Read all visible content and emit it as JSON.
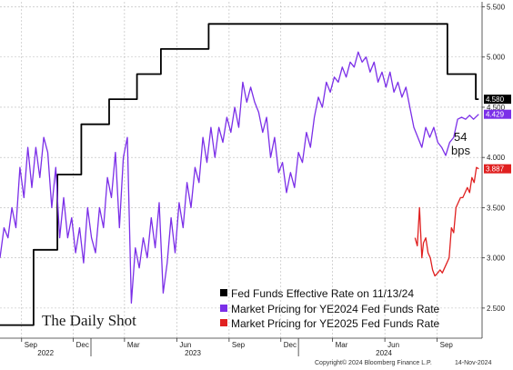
{
  "chart_data": {
    "type": "line",
    "xlabel": "",
    "ylabel": "",
    "ylim": [
      2.2,
      5.55
    ],
    "y_ticks": [
      "2.500",
      "3.000",
      "3.500",
      "4.000",
      "4.500",
      "5.000",
      "5.500"
    ],
    "x_ticks": [
      "Sep",
      "Dec",
      "Mar",
      "Jun",
      "Sep",
      "Dec",
      "Mar",
      "Jun",
      "Sep"
    ],
    "x_tick_dates": [
      "2022-09-01",
      "2022-12-01",
      "2023-03-01",
      "2023-06-01",
      "2023-09-01",
      "2023-12-01",
      "2024-03-01",
      "2024-06-01",
      "2024-09-01"
    ],
    "year_labels": [
      {
        "label": "2022",
        "date": "2022-10-15"
      },
      {
        "label": "2023",
        "date": "2023-07-01"
      },
      {
        "label": "2024",
        "date": "2024-06-01"
      }
    ],
    "grid": true,
    "legend_position": "bottom-right",
    "series": [
      {
        "name": "Fed Funds Effective Rate on 11/13/24",
        "color": "#000000",
        "last_value": "4.580",
        "points": [
          [
            "2022-07-25",
            2.33
          ],
          [
            "2022-08-01",
            2.33
          ],
          [
            "2022-09-22",
            2.33
          ],
          [
            "2022-09-22",
            3.08
          ],
          [
            "2022-11-03",
            3.08
          ],
          [
            "2022-11-03",
            3.83
          ],
          [
            "2022-12-15",
            3.83
          ],
          [
            "2022-12-15",
            4.33
          ],
          [
            "2023-02-02",
            4.33
          ],
          [
            "2023-02-02",
            4.58
          ],
          [
            "2023-03-23",
            4.58
          ],
          [
            "2023-03-23",
            4.83
          ],
          [
            "2023-05-04",
            4.83
          ],
          [
            "2023-05-04",
            5.08
          ],
          [
            "2023-07-27",
            5.08
          ],
          [
            "2023-07-27",
            5.33
          ],
          [
            "2024-09-19",
            5.33
          ],
          [
            "2024-09-19",
            4.83
          ],
          [
            "2024-11-08",
            4.83
          ],
          [
            "2024-11-08",
            4.58
          ],
          [
            "2024-11-13",
            4.58
          ]
        ]
      },
      {
        "name": "Market Pricing for YE2024 Fed Funds Rate",
        "color": "#7b2fe8",
        "last_value": "4.429",
        "points": [
          [
            "2022-07-25",
            3.0
          ],
          [
            "2022-08-01",
            3.3
          ],
          [
            "2022-08-08",
            3.2
          ],
          [
            "2022-08-15",
            3.5
          ],
          [
            "2022-08-22",
            3.3
          ],
          [
            "2022-08-29",
            3.9
          ],
          [
            "2022-09-05",
            3.6
          ],
          [
            "2022-09-12",
            4.1
          ],
          [
            "2022-09-19",
            3.7
          ],
          [
            "2022-09-26",
            4.1
          ],
          [
            "2022-10-03",
            3.8
          ],
          [
            "2022-10-10",
            4.2
          ],
          [
            "2022-10-17",
            4.05
          ],
          [
            "2022-10-24",
            3.5
          ],
          [
            "2022-10-31",
            3.9
          ],
          [
            "2022-11-07",
            3.2
          ],
          [
            "2022-11-14",
            3.6
          ],
          [
            "2022-11-21",
            3.2
          ],
          [
            "2022-11-28",
            3.4
          ],
          [
            "2022-12-05",
            3.05
          ],
          [
            "2022-12-12",
            3.3
          ],
          [
            "2022-12-19",
            2.95
          ],
          [
            "2022-12-26",
            3.5
          ],
          [
            "2023-01-02",
            3.2
          ],
          [
            "2023-01-09",
            3.05
          ],
          [
            "2023-01-16",
            3.5
          ],
          [
            "2023-01-23",
            3.3
          ],
          [
            "2023-01-30",
            3.8
          ],
          [
            "2023-02-06",
            3.6
          ],
          [
            "2023-02-13",
            4.05
          ],
          [
            "2023-02-20",
            3.3
          ],
          [
            "2023-02-27",
            4.0
          ],
          [
            "2023-03-06",
            4.2
          ],
          [
            "2023-03-13",
            2.55
          ],
          [
            "2023-03-20",
            3.1
          ],
          [
            "2023-03-27",
            2.9
          ],
          [
            "2023-04-03",
            3.2
          ],
          [
            "2023-04-10",
            3.0
          ],
          [
            "2023-04-17",
            3.4
          ],
          [
            "2023-04-24",
            3.1
          ],
          [
            "2023-05-01",
            3.55
          ],
          [
            "2023-05-08",
            2.65
          ],
          [
            "2023-05-15",
            2.95
          ],
          [
            "2023-05-22",
            3.4
          ],
          [
            "2023-05-29",
            3.05
          ],
          [
            "2023-06-05",
            3.55
          ],
          [
            "2023-06-12",
            3.3
          ],
          [
            "2023-06-19",
            3.75
          ],
          [
            "2023-06-26",
            3.5
          ],
          [
            "2023-07-03",
            3.9
          ],
          [
            "2023-07-10",
            3.75
          ],
          [
            "2023-07-17",
            4.2
          ],
          [
            "2023-07-24",
            3.95
          ],
          [
            "2023-07-31",
            4.3
          ],
          [
            "2023-08-07",
            4.0
          ],
          [
            "2023-08-14",
            4.3
          ],
          [
            "2023-08-21",
            4.15
          ],
          [
            "2023-08-28",
            4.4
          ],
          [
            "2023-09-04",
            4.25
          ],
          [
            "2023-09-11",
            4.5
          ],
          [
            "2023-09-18",
            4.3
          ],
          [
            "2023-09-25",
            4.75
          ],
          [
            "2023-10-02",
            4.55
          ],
          [
            "2023-10-09",
            4.7
          ],
          [
            "2023-10-16",
            4.55
          ],
          [
            "2023-10-23",
            4.45
          ],
          [
            "2023-10-30",
            4.25
          ],
          [
            "2023-11-06",
            4.4
          ],
          [
            "2023-11-13",
            4.0
          ],
          [
            "2023-11-20",
            4.2
          ],
          [
            "2023-11-27",
            3.85
          ],
          [
            "2023-12-04",
            3.95
          ],
          [
            "2023-12-11",
            3.65
          ],
          [
            "2023-12-18",
            3.85
          ],
          [
            "2023-12-25",
            3.7
          ],
          [
            "2024-01-01",
            4.05
          ],
          [
            "2024-01-08",
            3.95
          ],
          [
            "2024-01-15",
            4.25
          ],
          [
            "2024-01-22",
            4.1
          ],
          [
            "2024-01-29",
            4.4
          ],
          [
            "2024-02-05",
            4.6
          ],
          [
            "2024-02-12",
            4.5
          ],
          [
            "2024-02-19",
            4.75
          ],
          [
            "2024-02-26",
            4.65
          ],
          [
            "2024-03-04",
            4.8
          ],
          [
            "2024-03-11",
            4.75
          ],
          [
            "2024-03-18",
            4.9
          ],
          [
            "2024-03-25",
            4.8
          ],
          [
            "2024-04-01",
            4.95
          ],
          [
            "2024-04-08",
            4.9
          ],
          [
            "2024-04-15",
            5.05
          ],
          [
            "2024-04-22",
            4.95
          ],
          [
            "2024-04-29",
            5.0
          ],
          [
            "2024-05-06",
            4.85
          ],
          [
            "2024-05-13",
            4.95
          ],
          [
            "2024-05-20",
            4.75
          ],
          [
            "2024-05-27",
            4.85
          ],
          [
            "2024-06-03",
            4.7
          ],
          [
            "2024-06-10",
            4.85
          ],
          [
            "2024-06-17",
            4.65
          ],
          [
            "2024-06-24",
            4.75
          ],
          [
            "2024-07-01",
            4.6
          ],
          [
            "2024-07-08",
            4.7
          ],
          [
            "2024-07-15",
            4.5
          ],
          [
            "2024-07-22",
            4.3
          ],
          [
            "2024-07-29",
            4.2
          ],
          [
            "2024-08-05",
            4.1
          ],
          [
            "2024-08-12",
            4.3
          ],
          [
            "2024-08-19",
            4.2
          ],
          [
            "2024-08-26",
            4.3
          ],
          [
            "2024-09-02",
            4.15
          ],
          [
            "2024-09-09",
            4.1
          ],
          [
            "2024-09-16",
            4.02
          ],
          [
            "2024-09-23",
            4.15
          ],
          [
            "2024-09-30",
            4.2
          ],
          [
            "2024-10-07",
            4.38
          ],
          [
            "2024-10-14",
            4.4
          ],
          [
            "2024-10-21",
            4.38
          ],
          [
            "2024-10-28",
            4.42
          ],
          [
            "2024-11-04",
            4.38
          ],
          [
            "2024-11-13",
            4.43
          ]
        ]
      },
      {
        "name": "Market Pricing for YE2025 Fed Funds Rate",
        "color": "#e02020",
        "last_value": "3.887",
        "points": [
          [
            "2024-07-24",
            3.2
          ],
          [
            "2024-07-28",
            3.12
          ],
          [
            "2024-08-01",
            3.5
          ],
          [
            "2024-08-05",
            3.0
          ],
          [
            "2024-08-08",
            3.15
          ],
          [
            "2024-08-12",
            3.2
          ],
          [
            "2024-08-16",
            3.05
          ],
          [
            "2024-08-20",
            3.0
          ],
          [
            "2024-08-24",
            2.88
          ],
          [
            "2024-08-28",
            2.82
          ],
          [
            "2024-09-02",
            2.85
          ],
          [
            "2024-09-06",
            2.88
          ],
          [
            "2024-09-10",
            2.85
          ],
          [
            "2024-09-14",
            2.9
          ],
          [
            "2024-09-18",
            2.95
          ],
          [
            "2024-09-22",
            3.0
          ],
          [
            "2024-09-26",
            3.3
          ],
          [
            "2024-09-30",
            3.25
          ],
          [
            "2024-10-04",
            3.5
          ],
          [
            "2024-10-08",
            3.55
          ],
          [
            "2024-10-12",
            3.6
          ],
          [
            "2024-10-16",
            3.6
          ],
          [
            "2024-10-20",
            3.65
          ],
          [
            "2024-10-24",
            3.7
          ],
          [
            "2024-10-28",
            3.65
          ],
          [
            "2024-11-01",
            3.8
          ],
          [
            "2024-11-05",
            3.75
          ],
          [
            "2024-11-09",
            3.9
          ],
          [
            "2024-11-13",
            3.887
          ]
        ]
      }
    ],
    "annotations": [
      "54",
      "bps"
    ]
  },
  "branding": {
    "logo": "The Daily Shot",
    "copyright": "Copyright© 2024 Bloomberg Finance L.P.",
    "date": "14-Nov-2024"
  }
}
